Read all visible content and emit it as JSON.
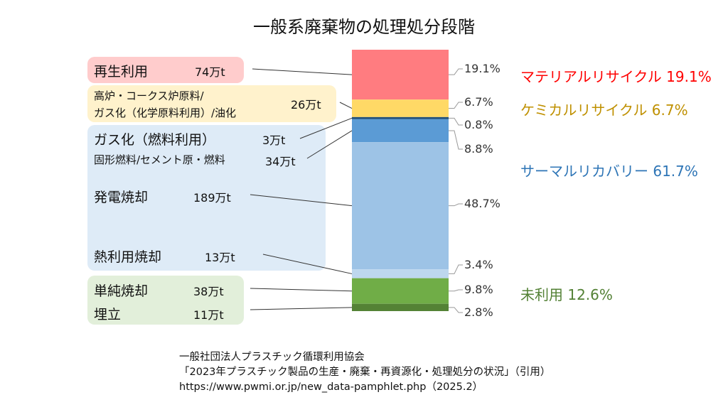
{
  "title": "一般系廃棄物の処理処分段階",
  "colors": {
    "material": "#ff7c80",
    "chemical": "#ffd966",
    "thermal_dark": "#5b9bd5",
    "thermal_mid": "#9dc3e6",
    "thermal_light": "#bdd7ee",
    "unused": "#70ad47",
    "unused_dark": "#548235",
    "group_material": "#ff0000",
    "group_chemical": "#bf9000",
    "group_thermal": "#2e75b6",
    "group_unused": "#538135",
    "box_material": "#ffcccc",
    "box_chemical": "#fff2cc",
    "box_thermal": "#deebf7",
    "box_unused": "#e2efda"
  },
  "chart_data": {
    "type": "bar",
    "stacked": true,
    "title": "一般系廃棄物の処理処分段階",
    "unit_amount": "万t",
    "segments": [
      {
        "label": "再生利用",
        "amount": "74万t",
        "percent": 19.1,
        "percent_label": "19.1%",
        "color": "#ff7c80",
        "group": "material"
      },
      {
        "label": "高炉・コークス炉原料/ガス化（化学原料利用）/油化",
        "amount": "26万t",
        "percent": 6.7,
        "percent_label": "6.7%",
        "color": "#ffd966",
        "group": "chemical"
      },
      {
        "label": "ガス化（燃料利用）",
        "amount": "3万t",
        "percent": 0.8,
        "percent_label": "0.8%",
        "color": "#1f4e79",
        "group": "thermal"
      },
      {
        "label": "固形燃料/セメント原・燃料",
        "amount": "34万t",
        "percent": 8.8,
        "percent_label": "8.8%",
        "color": "#5b9bd5",
        "group": "thermal"
      },
      {
        "label": "発電焼却",
        "amount": "189万t",
        "percent": 48.7,
        "percent_label": "48.7%",
        "color": "#9dc3e6",
        "group": "thermal"
      },
      {
        "label": "熱利用焼却",
        "amount": "13万t",
        "percent": 3.4,
        "percent_label": "3.4%",
        "color": "#bdd7ee",
        "group": "thermal"
      },
      {
        "label": "単純焼却",
        "amount": "38万t",
        "percent": 9.8,
        "percent_label": "9.8%",
        "color": "#70ad47",
        "group": "unused"
      },
      {
        "label": "埋立",
        "amount": "11万t",
        "percent": 2.8,
        "percent_label": "2.8%",
        "color": "#548235",
        "group": "unused"
      }
    ],
    "groups": [
      {
        "key": "material",
        "label": "マテリアルリサイクル 19.1%"
      },
      {
        "key": "chemical",
        "label": "ケミカルリサイクル 6.7%"
      },
      {
        "key": "thermal",
        "label": "サーマルリカバリー 61.7%"
      },
      {
        "key": "unused",
        "label": "未利用 12.6%"
      }
    ]
  },
  "labels": {
    "saisei": "再生利用",
    "saisei_amt": "74万t",
    "kouro_line1": "高炉・コークス炉原料/",
    "kouro_line2": "ガス化（化学原料利用）/油化",
    "kouro_amt": "26万t",
    "gasuka": "ガス化（燃料利用）",
    "gasuka_amt": "3万t",
    "kokei": "固形燃料/セメント原・燃料",
    "kokei_amt": "34万t",
    "hatsuden": "発電焼却",
    "hatsuden_amt": "189万t",
    "netsu": "熱利用焼却",
    "netsu_amt": "13万t",
    "tanjun": "単純焼却",
    "tanjun_amt": "38万t",
    "umetate": "埋立",
    "umetate_amt": "11万t"
  },
  "source": {
    "line1": "一般社団法人プラスチック循環利用協会",
    "line2": "「2023年プラスチック製品の生産・廃棄・再資源化・処理処分の状況」（引用）",
    "line3": "https://www.pwmi.or.jp/new_data-pamphlet.php（2025.2）"
  }
}
